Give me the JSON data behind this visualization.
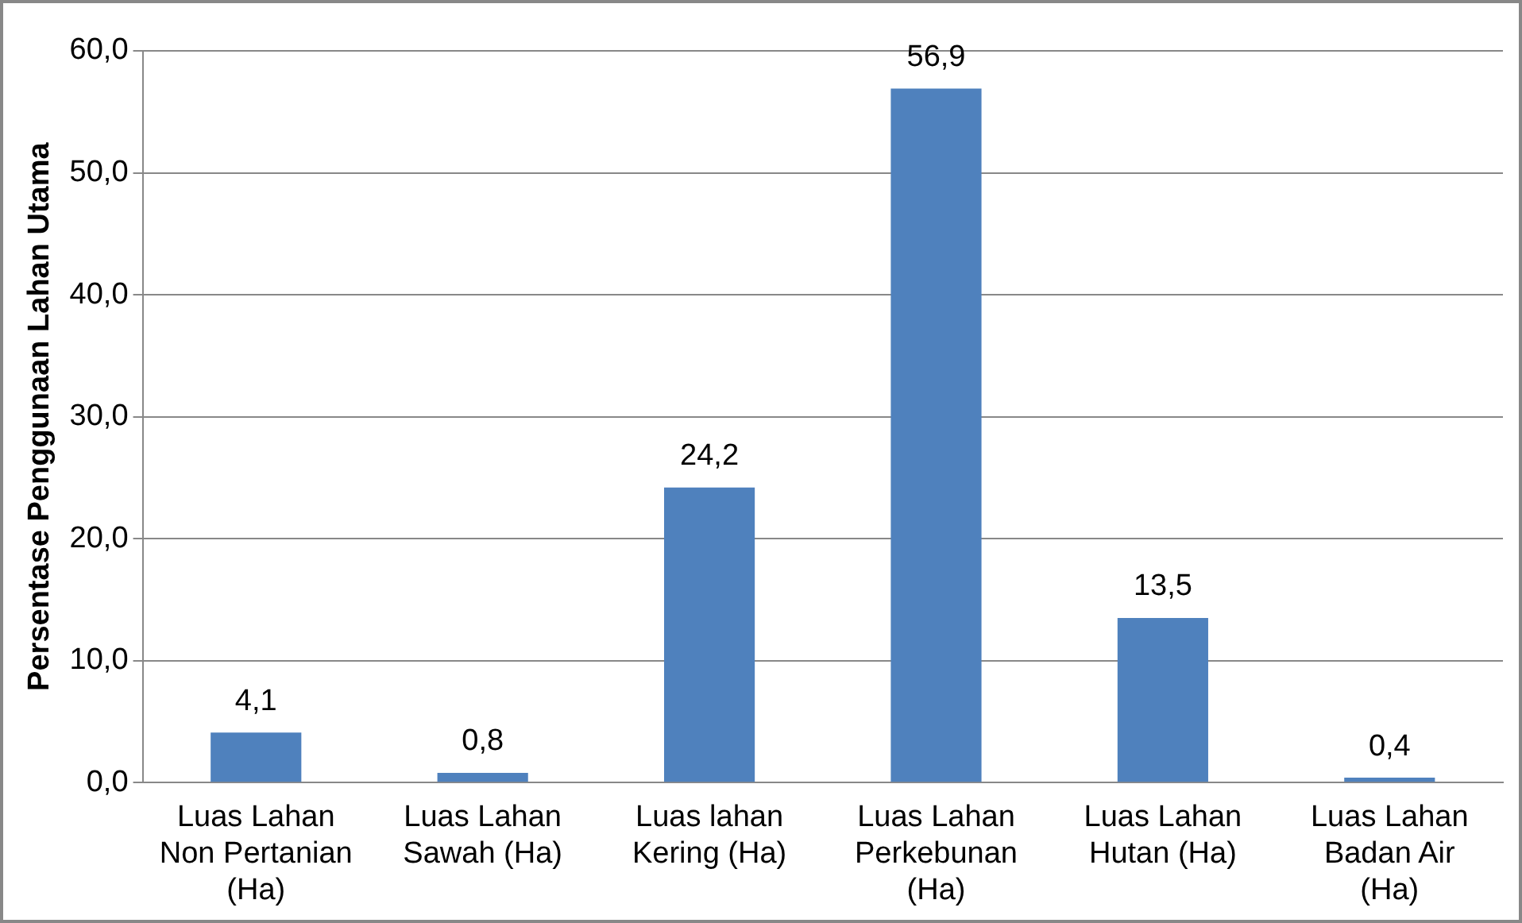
{
  "chart_data": {
    "type": "bar",
    "ylabel": "Persentase Penggunaan Lahan Utama",
    "categories": [
      "Luas Lahan Non Pertanian (Ha)",
      "Luas Lahan Sawah (Ha)",
      "Luas lahan Kering (Ha)",
      "Luas Lahan Perkebunan (Ha)",
      "Luas Lahan Hutan (Ha)",
      "Luas Lahan Badan Air (Ha)"
    ],
    "values": [
      4.1,
      0.8,
      24.2,
      56.9,
      13.5,
      0.4
    ],
    "value_labels": [
      "4,1",
      "0,8",
      "24,2",
      "56,9",
      "13,5",
      "0,4"
    ],
    "color": "#4f81bd",
    "ylim": [
      0,
      60
    ],
    "yticks": [
      {
        "value": 0,
        "label": "0,0"
      },
      {
        "value": 10,
        "label": "10,0"
      },
      {
        "value": 20,
        "label": "20,0"
      },
      {
        "value": 30,
        "label": "30,0"
      },
      {
        "value": 40,
        "label": "40,0"
      },
      {
        "value": 50,
        "label": "50,0"
      },
      {
        "value": 60,
        "label": "60,0"
      }
    ],
    "grid": "y",
    "legend": false
  }
}
